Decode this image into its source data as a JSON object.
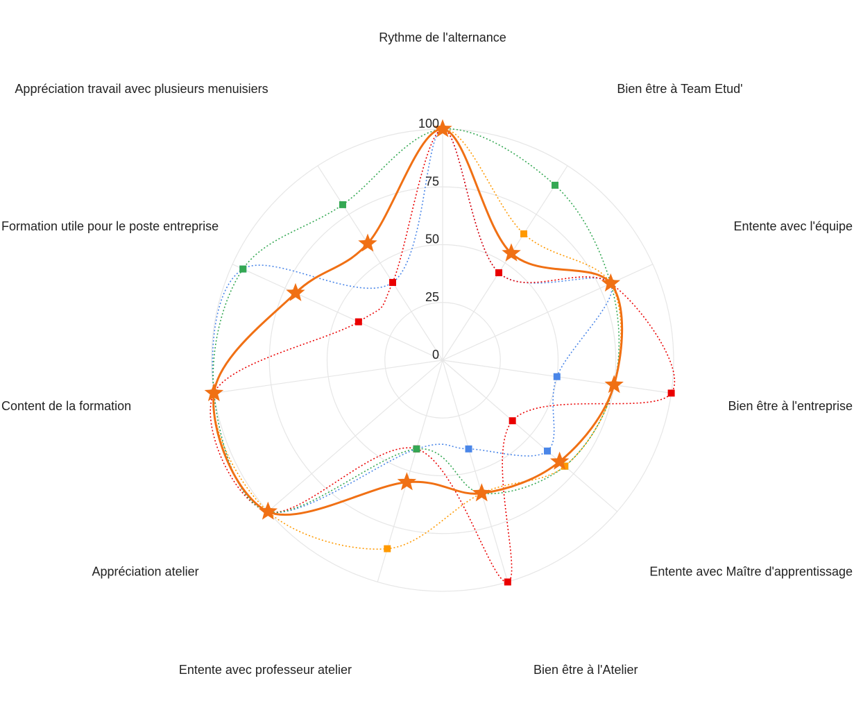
{
  "chart_data": {
    "type": "radar",
    "axes": [
      "Rythme de l'alternance",
      "Bien être à Team Etud'",
      "Entente avec l'équipe",
      "Bien être à l'entreprise",
      "Entente avec Maître d'apprentissage",
      "Bien être à l'Atelier",
      "Entente avec professeur atelier",
      "Appréciation atelier",
      "Content de la formation",
      "Formation utile pour le poste entreprise",
      "Appréciation travail avec plusieurs menuisiers"
    ],
    "r_ticks": [
      0,
      25,
      50,
      75,
      100
    ],
    "r_range": [
      0,
      100
    ],
    "grid": true,
    "series": [
      {
        "name": "",
        "color": "#4a86e8",
        "style": "dotted",
        "marker": "square",
        "values": [
          100,
          45,
          80,
          50,
          60,
          40,
          40,
          100,
          100,
          95,
          40
        ]
      },
      {
        "name": "",
        "color": "#ea0000",
        "style": "dotted",
        "marker": "square",
        "values": [
          100,
          45,
          80,
          100,
          40,
          100,
          40,
          100,
          100,
          40,
          40
        ]
      },
      {
        "name": "",
        "color": "#34a853",
        "style": "dotted",
        "marker": "square",
        "values": [
          100,
          90,
          80,
          75,
          70,
          60,
          40,
          100,
          100,
          95,
          80
        ]
      },
      {
        "name": "",
        "color": "#ff9900",
        "style": "dotted",
        "marker": "square",
        "values": [
          100,
          65,
          80,
          75,
          70,
          60,
          85,
          100,
          100,
          70,
          60
        ]
      },
      {
        "name": "",
        "color": "#f07014",
        "style": "solid",
        "marker": "star",
        "values": [
          100,
          55,
          80,
          75,
          67,
          60,
          55,
          100,
          100,
          70,
          60
        ]
      }
    ]
  }
}
